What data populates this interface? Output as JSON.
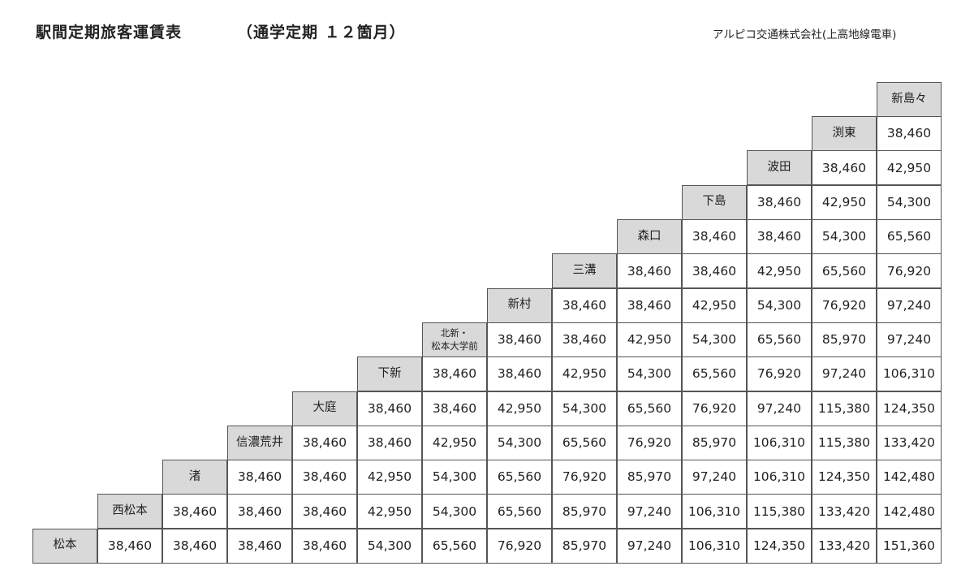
{
  "header": {
    "title": "駅間定期旅客運賃表",
    "subtitle": "（通学定期 １２箇月）",
    "company": "アルピコ交通株式会社(上高地線電車)"
  },
  "stations": [
    "松本",
    "西松本",
    "渚",
    "信濃荒井",
    "大庭",
    "下新",
    "北新・\n松本大学前",
    "新村",
    "三溝",
    "森口",
    "下島",
    "波田",
    "渕東",
    "新島々"
  ],
  "fare_rows": [
    [
      "38,460",
      "38,460",
      "38,460",
      "38,460",
      "54,300",
      "65,560",
      "76,920",
      "85,970",
      "97,240",
      "106,310",
      "124,350",
      "133,420",
      "151,360"
    ],
    [
      "38,460",
      "38,460",
      "38,460",
      "42,950",
      "54,300",
      "65,560",
      "85,970",
      "97,240",
      "106,310",
      "115,380",
      "133,420",
      "142,480"
    ],
    [
      "38,460",
      "38,460",
      "42,950",
      "54,300",
      "65,560",
      "76,920",
      "85,970",
      "97,240",
      "106,310",
      "124,350",
      "142,480"
    ],
    [
      "38,460",
      "38,460",
      "42,950",
      "54,300",
      "65,560",
      "76,920",
      "85,970",
      "106,310",
      "115,380",
      "133,420"
    ],
    [
      "38,460",
      "38,460",
      "42,950",
      "54,300",
      "65,560",
      "76,920",
      "97,240",
      "115,380",
      "124,350"
    ],
    [
      "38,460",
      "38,460",
      "42,950",
      "54,300",
      "65,560",
      "76,920",
      "97,240",
      "106,310"
    ],
    [
      "38,460",
      "38,460",
      "42,950",
      "54,300",
      "65,560",
      "85,970",
      "97,240"
    ],
    [
      "38,460",
      "38,460",
      "42,950",
      "54,300",
      "76,920",
      "97,240"
    ],
    [
      "38,460",
      "38,460",
      "42,950",
      "65,560",
      "76,920"
    ],
    [
      "38,460",
      "38,460",
      "54,300",
      "65,560"
    ],
    [
      "38,460",
      "42,950",
      "54,300"
    ],
    [
      "38,460",
      "42,950"
    ],
    [
      "38,460"
    ]
  ]
}
